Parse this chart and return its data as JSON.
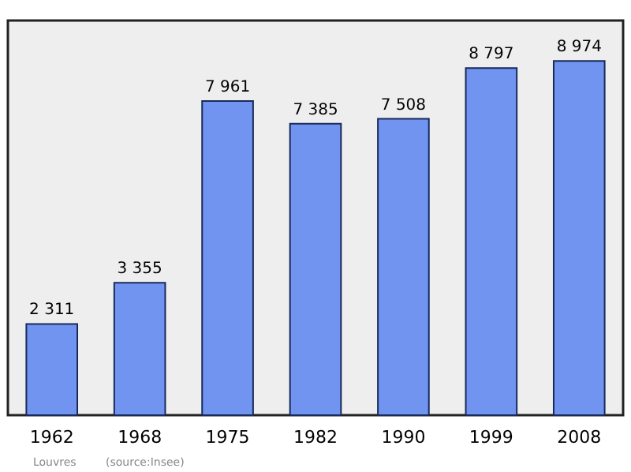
{
  "chart_data": {
    "type": "bar",
    "categories": [
      "1962",
      "1968",
      "1975",
      "1982",
      "1990",
      "1999",
      "2008"
    ],
    "values": [
      2311,
      3355,
      7961,
      7385,
      7508,
      8797,
      8974
    ],
    "value_labels": [
      "2 311",
      "3 355",
      "7 961",
      "7 385",
      "7 508",
      "8 797",
      "8 974"
    ],
    "color": "#7094f0",
    "ylim": [
      0,
      10000
    ],
    "tick_labels": "x",
    "grid": false,
    "annotations": [
      "Louvres",
      "(source:Insee)"
    ]
  }
}
